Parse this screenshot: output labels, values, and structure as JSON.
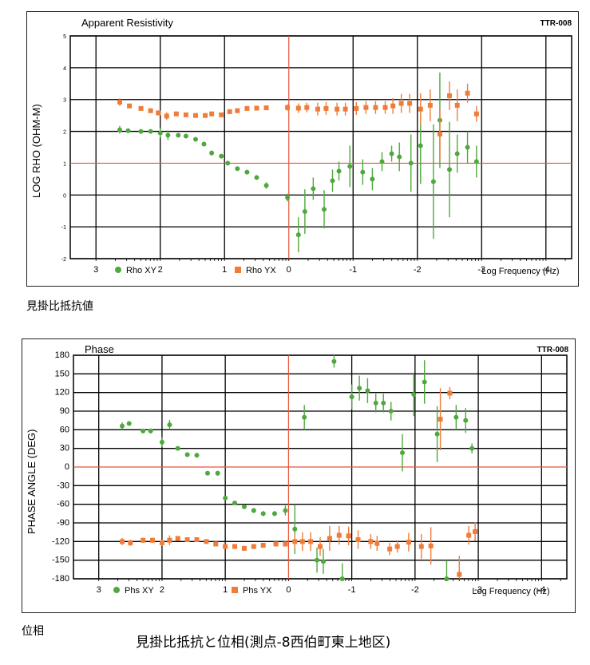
{
  "chart_data": [
    {
      "type": "scatter",
      "title": "Apparent Resistivity",
      "tag": "TTR-008",
      "ylabel": "LOG RHO (OHM-M)",
      "xlabel": "Log Frequency (Hz)",
      "x_ticks": [
        "3",
        "2",
        "1",
        "0",
        "-1",
        "-2",
        "-3",
        "-4"
      ],
      "y_ticks": [
        "5",
        "4",
        "3",
        "2",
        "1",
        "0",
        "-1",
        "-2"
      ],
      "xlim": [
        3.4,
        -4.4
      ],
      "ylim": [
        -2,
        5
      ],
      "hline": 1,
      "vline": 0,
      "grid": true,
      "legend_position": "bottom-left",
      "series": [
        {
          "name": "Rho XY",
          "color": "#4fa83d",
          "marker": "circle",
          "points": [
            [
              2.63,
              2.05,
              0.12
            ],
            [
              2.5,
              2.02,
              0.06
            ],
            [
              2.3,
              2.0,
              0.05
            ],
            [
              2.15,
              2.0,
              0.05
            ],
            [
              2.0,
              1.95,
              0.15
            ],
            [
              1.88,
              1.88,
              0.15
            ],
            [
              1.72,
              1.88,
              0.05
            ],
            [
              1.6,
              1.85,
              0.05
            ],
            [
              1.45,
              1.75,
              0.05
            ],
            [
              1.32,
              1.6,
              0.05
            ],
            [
              1.2,
              1.32,
              0.08
            ],
            [
              1.05,
              1.22,
              0.05
            ],
            [
              0.95,
              1.0,
              0.05
            ],
            [
              0.8,
              0.83,
              0.05
            ],
            [
              0.65,
              0.72,
              0.05
            ],
            [
              0.5,
              0.55,
              0.05
            ],
            [
              0.35,
              0.3,
              0.1
            ],
            [
              0.02,
              -0.08,
              0.12
            ],
            [
              -0.15,
              -1.25,
              0.55
            ],
            [
              -0.25,
              -0.52,
              0.7
            ],
            [
              -0.38,
              0.2,
              0.35
            ],
            [
              -0.55,
              -0.45,
              0.6
            ],
            [
              -0.68,
              0.45,
              0.35
            ],
            [
              -0.78,
              0.75,
              0.3
            ],
            [
              -0.95,
              0.9,
              0.65
            ],
            [
              -1.15,
              0.72,
              0.4
            ],
            [
              -1.3,
              0.5,
              0.35
            ],
            [
              -1.45,
              1.05,
              0.3
            ],
            [
              -1.6,
              1.3,
              0.25
            ],
            [
              -1.72,
              1.2,
              0.45
            ],
            [
              -1.9,
              1.0,
              0.9
            ],
            [
              -2.05,
              1.55,
              1.2
            ],
            [
              -2.25,
              0.42,
              1.8
            ],
            [
              -2.35,
              2.35,
              1.5
            ],
            [
              -2.5,
              0.8,
              1.5
            ],
            [
              -2.62,
              1.3,
              0.6
            ],
            [
              -2.78,
              1.5,
              0.5
            ],
            [
              -2.92,
              1.05,
              0.5
            ]
          ]
        },
        {
          "name": "Rho YX",
          "color": "#f07c3a",
          "marker": "square",
          "points": [
            [
              2.63,
              2.92,
              0.12
            ],
            [
              2.48,
              2.8,
              0.05
            ],
            [
              2.3,
              2.72,
              0.05
            ],
            [
              2.15,
              2.65,
              0.05
            ],
            [
              2.03,
              2.58,
              0.08
            ],
            [
              1.9,
              2.48,
              0.12
            ],
            [
              1.75,
              2.55,
              0.05
            ],
            [
              1.6,
              2.52,
              0.05
            ],
            [
              1.45,
              2.5,
              0.05
            ],
            [
              1.3,
              2.5,
              0.05
            ],
            [
              1.2,
              2.55,
              0.05
            ],
            [
              1.05,
              2.52,
              0.05
            ],
            [
              0.92,
              2.62,
              0.05
            ],
            [
              0.8,
              2.65,
              0.05
            ],
            [
              0.65,
              2.72,
              0.05
            ],
            [
              0.5,
              2.73,
              0.05
            ],
            [
              0.35,
              2.74,
              0.05
            ],
            [
              0.02,
              2.75,
              0.1
            ],
            [
              -0.15,
              2.73,
              0.15
            ],
            [
              -0.28,
              2.75,
              0.15
            ],
            [
              -0.45,
              2.7,
              0.2
            ],
            [
              -0.58,
              2.72,
              0.2
            ],
            [
              -0.75,
              2.7,
              0.2
            ],
            [
              -0.88,
              2.7,
              0.2
            ],
            [
              -1.05,
              2.72,
              0.2
            ],
            [
              -1.2,
              2.75,
              0.2
            ],
            [
              -1.35,
              2.75,
              0.2
            ],
            [
              -1.5,
              2.75,
              0.2
            ],
            [
              -1.62,
              2.8,
              0.25
            ],
            [
              -1.75,
              2.88,
              0.3
            ],
            [
              -1.88,
              2.88,
              0.3
            ],
            [
              -2.05,
              2.7,
              0.5
            ],
            [
              -2.2,
              2.82,
              0.5
            ],
            [
              -2.35,
              1.92,
              0.8
            ],
            [
              -2.5,
              3.12,
              0.45
            ],
            [
              -2.62,
              2.82,
              0.5
            ],
            [
              -2.78,
              3.2,
              0.3
            ],
            [
              -2.92,
              2.55,
              0.25
            ]
          ]
        }
      ]
    },
    {
      "type": "scatter",
      "title": "Phase",
      "tag": "TTR-008",
      "ylabel": "PHASE ANGLE (DEG)",
      "xlabel": "Log Frequency (Hz)",
      "x_ticks": [
        "3",
        "2",
        "1",
        "0",
        "-1",
        "-2",
        "-3",
        "-4"
      ],
      "y_ticks": [
        "180",
        "150",
        "120",
        "90",
        "60",
        "30",
        "0",
        "-30",
        "-60",
        "-90",
        "-120",
        "-150",
        "-180"
      ],
      "xlim": [
        3.4,
        -4.4
      ],
      "ylim": [
        -180,
        180
      ],
      "hline": 0,
      "vline": 0,
      "grid": true,
      "legend_position": "bottom-left",
      "series": [
        {
          "name": "Phs XY",
          "color": "#4fa83d",
          "marker": "circle",
          "points": [
            [
              2.63,
              66,
              6
            ],
            [
              2.52,
              70,
              3
            ],
            [
              2.3,
              58,
              3
            ],
            [
              2.18,
              58,
              4
            ],
            [
              2.0,
              40,
              8
            ],
            [
              1.88,
              68,
              8
            ],
            [
              1.75,
              30,
              3
            ],
            [
              1.6,
              20,
              3
            ],
            [
              1.45,
              19,
              3
            ],
            [
              1.28,
              -10,
              3
            ],
            [
              1.12,
              -10,
              4
            ],
            [
              1.0,
              -50,
              3
            ],
            [
              0.85,
              -58,
              3
            ],
            [
              0.7,
              -64,
              3
            ],
            [
              0.55,
              -70,
              4
            ],
            [
              0.4,
              -75,
              4
            ],
            [
              0.22,
              -75,
              4
            ],
            [
              0.05,
              -70,
              8
            ],
            [
              -0.1,
              -100,
              40
            ],
            [
              -0.25,
              80,
              20
            ],
            [
              -0.45,
              -150,
              20
            ],
            [
              -0.55,
              -152,
              20
            ],
            [
              -0.72,
              170,
              10
            ],
            [
              -0.85,
              -180,
              25
            ],
            [
              -1.0,
              113,
              20
            ],
            [
              -1.12,
              127,
              20
            ],
            [
              -1.25,
              123,
              20
            ],
            [
              -1.38,
              103,
              15
            ],
            [
              -1.5,
              103,
              15
            ],
            [
              -1.62,
              90,
              15
            ],
            [
              -1.8,
              23,
              30
            ],
            [
              -1.98,
              117,
              35
            ],
            [
              -2.15,
              137,
              35
            ],
            [
              -2.35,
              53,
              45
            ],
            [
              -2.5,
              -180,
              30
            ],
            [
              -2.65,
              80,
              20
            ],
            [
              -2.8,
              75,
              20
            ],
            [
              -2.9,
              30,
              8
            ]
          ]
        },
        {
          "name": "Phs YX",
          "color": "#f07c3a",
          "marker": "square",
          "points": [
            [
              2.63,
              -120,
              6
            ],
            [
              2.5,
              -122,
              5
            ],
            [
              2.3,
              -118,
              4
            ],
            [
              2.15,
              -118,
              4
            ],
            [
              2.0,
              -122,
              5
            ],
            [
              1.88,
              -118,
              8
            ],
            [
              1.75,
              -115,
              3
            ],
            [
              1.6,
              -117,
              3
            ],
            [
              1.45,
              -117,
              3
            ],
            [
              1.3,
              -120,
              3
            ],
            [
              1.15,
              -124,
              4
            ],
            [
              1.0,
              -128,
              4
            ],
            [
              0.85,
              -128,
              4
            ],
            [
              0.7,
              -131,
              4
            ],
            [
              0.55,
              -128,
              4
            ],
            [
              0.4,
              -126,
              4
            ],
            [
              0.2,
              -124,
              4
            ],
            [
              0.05,
              -124,
              4
            ],
            [
              -0.1,
              -120,
              12
            ],
            [
              -0.22,
              -120,
              15
            ],
            [
              -0.35,
              -120,
              15
            ],
            [
              -0.5,
              -128,
              15
            ],
            [
              -0.65,
              -115,
              20
            ],
            [
              -0.8,
              -110,
              15
            ],
            [
              -0.95,
              -111,
              15
            ],
            [
              -1.1,
              -117,
              15
            ],
            [
              -1.3,
              -120,
              12
            ],
            [
              -1.4,
              -123,
              12
            ],
            [
              -1.6,
              -132,
              10
            ],
            [
              -1.72,
              -128,
              10
            ],
            [
              -1.9,
              -121,
              15
            ],
            [
              -2.1,
              -128,
              20
            ],
            [
              -2.25,
              -127,
              30
            ],
            [
              -2.4,
              77,
              50
            ],
            [
              -2.55,
              119,
              10
            ],
            [
              -2.7,
              -173,
              30
            ],
            [
              -2.85,
              -110,
              15
            ],
            [
              -2.95,
              -104,
              15
            ]
          ]
        }
      ]
    }
  ],
  "captions": {
    "rho": "見掛比抵抗値",
    "phase": "位相",
    "main": "見掛比抵抗と位相(測点-8西伯町東上地区)"
  }
}
